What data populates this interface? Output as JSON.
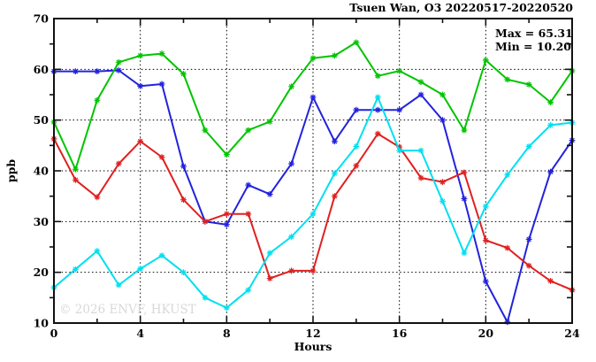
{
  "watermark": "© 2026 ENVF, HKUST",
  "chart_data": {
    "type": "line",
    "title": "Tsuen Wan, O3 20220517-20220520",
    "xlabel": "Hours",
    "ylabel": "ppb",
    "xlim": [
      0,
      24
    ],
    "ylim": [
      10,
      70
    ],
    "grid": true,
    "grid_style": "dotted",
    "legend_position": "none",
    "annotations": {
      "max": "Max = 65.31",
      "min": "Min = 10.20"
    },
    "max_value": 65.31,
    "min_value": 10.2,
    "x_major_ticks": [
      0,
      4,
      8,
      12,
      16,
      20,
      24
    ],
    "x_tick_labels": [
      "0",
      "4",
      "8",
      "12",
      "16",
      "20",
      "24"
    ],
    "x_minor_ticks": [
      2,
      6,
      10,
      14,
      18,
      22
    ],
    "y_major_ticks": [
      10,
      20,
      30,
      40,
      50,
      60,
      70
    ],
    "y_tick_labels": [
      "10",
      "20",
      "30",
      "40",
      "50",
      "60",
      "70"
    ],
    "y_minor_ticks": [
      15,
      25,
      35,
      45,
      55,
      65
    ],
    "x_gridlines": [
      4,
      8,
      12,
      16,
      20
    ],
    "y_gridlines": [
      20,
      30,
      40,
      50,
      60
    ],
    "x": [
      0,
      1,
      2,
      3,
      4,
      5,
      6,
      7,
      8,
      9,
      10,
      11,
      12,
      13,
      14,
      15,
      16,
      17,
      18,
      19,
      20,
      21,
      22,
      23,
      24
    ],
    "series": [
      {
        "name": "series-blue",
        "color": "#2222dd",
        "values": [
          59.6,
          59.6,
          59.6,
          59.8,
          56.7,
          57.1,
          40.9,
          30.0,
          29.4,
          37.2,
          35.4,
          41.4,
          54.5,
          45.8,
          52.0,
          52.0,
          52.0,
          55.0,
          50.0,
          34.5,
          18.2,
          10.2,
          26.5,
          39.8,
          46.0
        ]
      },
      {
        "name": "series-green",
        "color": "#00c400",
        "values": [
          49.6,
          40.3,
          53.9,
          61.4,
          62.7,
          63.1,
          59.1,
          48.0,
          43.2,
          48.0,
          49.7,
          56.6,
          62.2,
          62.7,
          65.31,
          58.7,
          59.7,
          57.5,
          55.0,
          48.0,
          61.8,
          58.0,
          57.0,
          53.5,
          59.7
        ]
      },
      {
        "name": "series-red",
        "color": "#e02020",
        "values": [
          46.3,
          38.2,
          34.8,
          41.4,
          45.8,
          42.7,
          34.3,
          30.0,
          31.5,
          31.5,
          18.8,
          20.3,
          20.3,
          35.0,
          41.0,
          47.3,
          44.7,
          38.6,
          37.8,
          39.7,
          26.3,
          24.8,
          21.3,
          18.3,
          16.5
        ]
      },
      {
        "name": "series-cyan",
        "color": "#00dff0",
        "values": [
          17.0,
          20.6,
          24.2,
          17.5,
          20.7,
          23.3,
          20.0,
          15.0,
          13.0,
          16.5,
          23.8,
          27.0,
          31.5,
          39.5,
          44.8,
          54.5,
          44.0,
          44.0,
          34.0,
          23.8,
          33.0,
          39.2,
          44.8,
          49.0,
          49.5
        ]
      }
    ]
  }
}
